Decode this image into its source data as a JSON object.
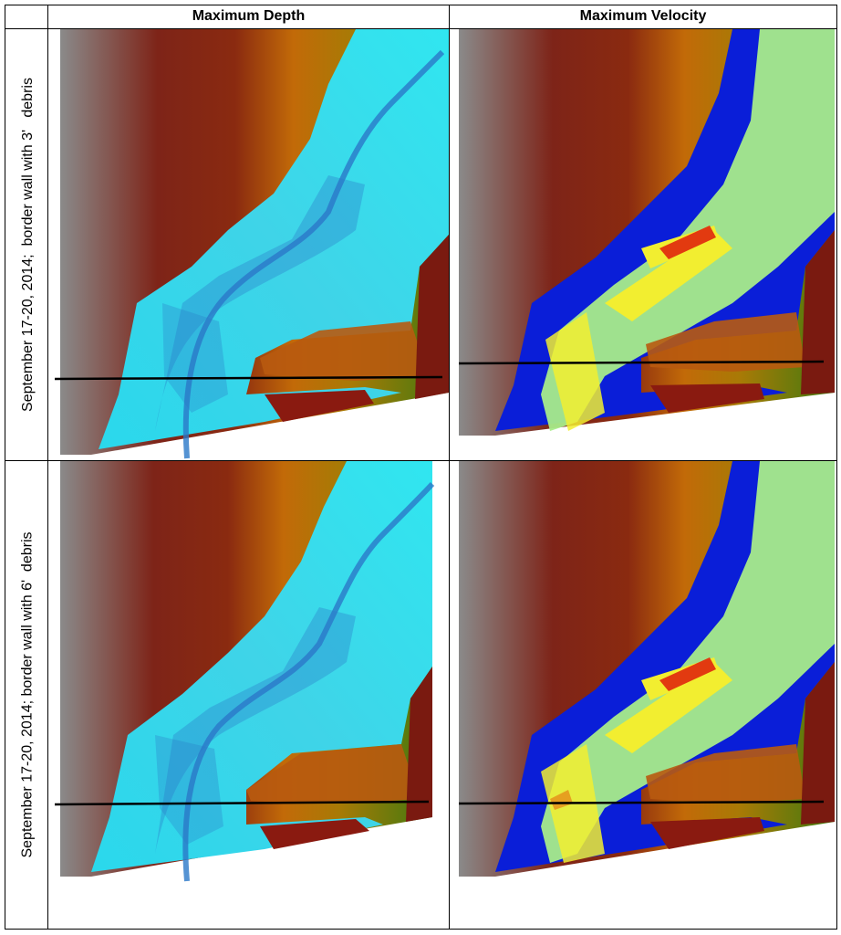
{
  "table": {
    "columns": [
      "Maximum Depth",
      "Maximum Velocity"
    ],
    "rows": [
      {
        "label": "September 17-20, 2014;  border wall with 3'   debris"
      },
      {
        "label": "September 17-20, 2014; border wall with 6'  debris"
      }
    ]
  },
  "colors": {
    "terrain_gray": "#8a8a8a",
    "terrain_red": "#7a1a10",
    "terrain_orange": "#c26a08",
    "terrain_green": "#3f7a10",
    "depth_light": "#33e0ee",
    "depth_dark": "#2a6ec0",
    "velocity_blue": "#0a1ed8",
    "velocity_green": "#a8ec8a",
    "velocity_yellow": "#f2ee30",
    "velocity_red": "#e23a10",
    "wall_line": "#000000"
  }
}
